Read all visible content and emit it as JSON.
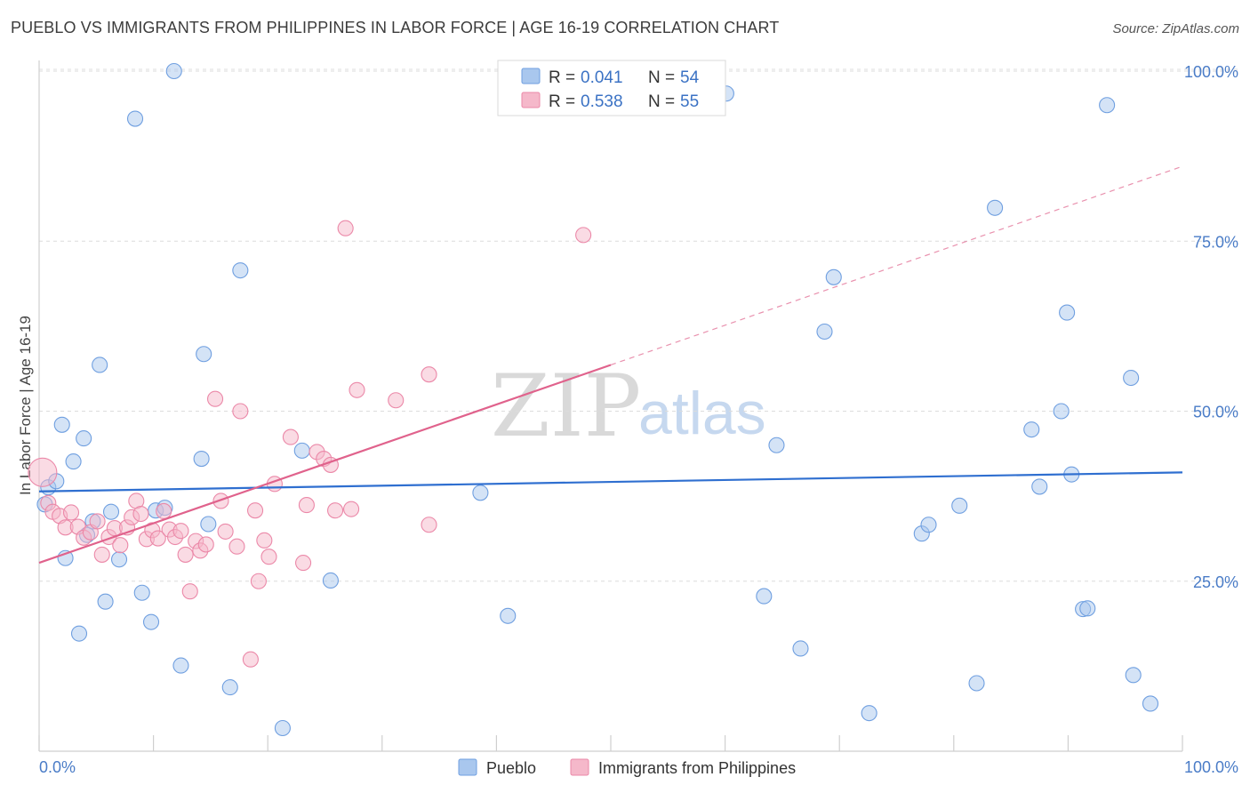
{
  "header": {
    "title": "PUEBLO VS IMMIGRANTS FROM PHILIPPINES IN LABOR FORCE | AGE 16-19 CORRELATION CHART",
    "source": "Source: ZipAtlas.com"
  },
  "watermark": {
    "zip": "ZIP",
    "atlas": "atlas"
  },
  "legend": {
    "rows": [
      {
        "r_label": "R =",
        "r_value": "0.041",
        "n_label": "N =",
        "n_value": "54",
        "color": "#a9c7ee"
      },
      {
        "r_label": "R =",
        "r_value": "0.538",
        "n_label": "N =",
        "n_value": "55",
        "color": "#f5b8ca"
      }
    ]
  },
  "bottom_legend": {
    "series1": "Pueblo",
    "series2": "Immigrants from Philippines"
  },
  "chart_data": {
    "type": "scatter",
    "title": "PUEBLO VS IMMIGRANTS FROM PHILIPPINES IN LABOR FORCE | AGE 16-19 CORRELATION CHART",
    "ylabel": "In Labor Force | Age 16-19",
    "xlabel": "",
    "xlim": [
      0,
      100
    ],
    "ylim": [
      0,
      102
    ],
    "x_tick_labels": [
      "0.0%",
      "100.0%"
    ],
    "y_ticks": [
      25,
      50,
      75,
      100
    ],
    "y_tick_labels": [
      "25.0%",
      "50.0%",
      "75.0%",
      "100.0%"
    ],
    "grid": "horizontal dashed",
    "legend_position": "top-center",
    "series": [
      {
        "name": "Pueblo",
        "color": "#6f9fe0",
        "fill": "#a9c7ee",
        "trend": {
          "x": [
            0,
            100
          ],
          "y": [
            38.2,
            41.0
          ],
          "style": "solid",
          "color": "#2f6fd0"
        },
        "points": [
          [
            0.5,
            36.3
          ],
          [
            0.8,
            38.8
          ],
          [
            1.5,
            39.7
          ],
          [
            2.0,
            48.0
          ],
          [
            2.3,
            28.4
          ],
          [
            3.0,
            42.6
          ],
          [
            3.5,
            17.3
          ],
          [
            3.9,
            46.0
          ],
          [
            4.2,
            31.8
          ],
          [
            4.7,
            33.8
          ],
          [
            5.3,
            56.8
          ],
          [
            5.8,
            22.0
          ],
          [
            6.3,
            35.2
          ],
          [
            7.0,
            28.2
          ],
          [
            8.4,
            93.0
          ],
          [
            9.0,
            23.3
          ],
          [
            9.8,
            19.0
          ],
          [
            10.2,
            35.4
          ],
          [
            11.0,
            35.8
          ],
          [
            11.8,
            100.0
          ],
          [
            12.4,
            12.6
          ],
          [
            14.2,
            43.0
          ],
          [
            14.4,
            58.4
          ],
          [
            14.8,
            33.4
          ],
          [
            16.7,
            9.4
          ],
          [
            17.6,
            70.7
          ],
          [
            21.3,
            3.4
          ],
          [
            23.0,
            44.2
          ],
          [
            25.5,
            25.1
          ],
          [
            38.6,
            38.0
          ],
          [
            41.0,
            19.9
          ],
          [
            60.1,
            96.7
          ],
          [
            63.4,
            22.8
          ],
          [
            64.5,
            45.0
          ],
          [
            66.6,
            15.1
          ],
          [
            68.7,
            61.7
          ],
          [
            69.5,
            69.7
          ],
          [
            72.6,
            5.6
          ],
          [
            77.2,
            32.0
          ],
          [
            77.8,
            33.3
          ],
          [
            80.5,
            36.1
          ],
          [
            82.0,
            10.0
          ],
          [
            83.6,
            79.9
          ],
          [
            86.8,
            47.3
          ],
          [
            87.5,
            38.9
          ],
          [
            89.4,
            50.0
          ],
          [
            89.9,
            64.5
          ],
          [
            90.3,
            40.7
          ],
          [
            91.3,
            20.9
          ],
          [
            91.7,
            21.0
          ],
          [
            93.4,
            95.0
          ],
          [
            95.5,
            54.9
          ],
          [
            95.7,
            11.2
          ],
          [
            97.2,
            7.0
          ]
        ]
      },
      {
        "name": "Immigrants from Philippines",
        "color": "#eb88a8",
        "fill": "#f5b8ca",
        "trend": {
          "x": [
            0,
            50
          ],
          "y": [
            27.7,
            56.8
          ],
          "style": "solid",
          "dashed_extension_to": [
            100,
            86.0
          ],
          "color": "#e0628c"
        },
        "points": [
          [
            0.3,
            41.0
          ],
          [
            0.8,
            36.5
          ],
          [
            1.2,
            35.2
          ],
          [
            1.8,
            34.6
          ],
          [
            2.3,
            32.9
          ],
          [
            2.8,
            35.1
          ],
          [
            3.4,
            33.0
          ],
          [
            3.9,
            31.4
          ],
          [
            4.5,
            32.2
          ],
          [
            5.1,
            33.8
          ],
          [
            5.5,
            28.9
          ],
          [
            6.1,
            31.5
          ],
          [
            6.6,
            32.8
          ],
          [
            7.1,
            30.3
          ],
          [
            7.7,
            32.9
          ],
          [
            8.1,
            34.4
          ],
          [
            8.5,
            36.8
          ],
          [
            8.9,
            34.9
          ],
          [
            9.4,
            31.2
          ],
          [
            9.9,
            32.5
          ],
          [
            10.4,
            31.3
          ],
          [
            10.9,
            35.3
          ],
          [
            11.4,
            32.6
          ],
          [
            11.9,
            31.5
          ],
          [
            12.4,
            32.4
          ],
          [
            12.8,
            28.9
          ],
          [
            13.2,
            23.5
          ],
          [
            13.7,
            30.9
          ],
          [
            14.1,
            29.5
          ],
          [
            14.6,
            30.4
          ],
          [
            15.4,
            51.8
          ],
          [
            15.9,
            36.8
          ],
          [
            16.3,
            32.3
          ],
          [
            17.3,
            30.1
          ],
          [
            17.6,
            50.0
          ],
          [
            18.9,
            35.4
          ],
          [
            19.2,
            25.0
          ],
          [
            19.7,
            31.0
          ],
          [
            20.1,
            28.6
          ],
          [
            20.6,
            39.3
          ],
          [
            18.5,
            13.5
          ],
          [
            22.0,
            46.2
          ],
          [
            23.1,
            27.7
          ],
          [
            23.4,
            36.2
          ],
          [
            24.3,
            44.0
          ],
          [
            24.9,
            43.0
          ],
          [
            25.5,
            42.1
          ],
          [
            25.9,
            35.4
          ],
          [
            26.8,
            76.9
          ],
          [
            27.3,
            35.6
          ],
          [
            27.8,
            53.1
          ],
          [
            31.2,
            51.6
          ],
          [
            34.1,
            55.4
          ],
          [
            34.1,
            33.3
          ],
          [
            47.6,
            75.9
          ]
        ]
      }
    ]
  }
}
